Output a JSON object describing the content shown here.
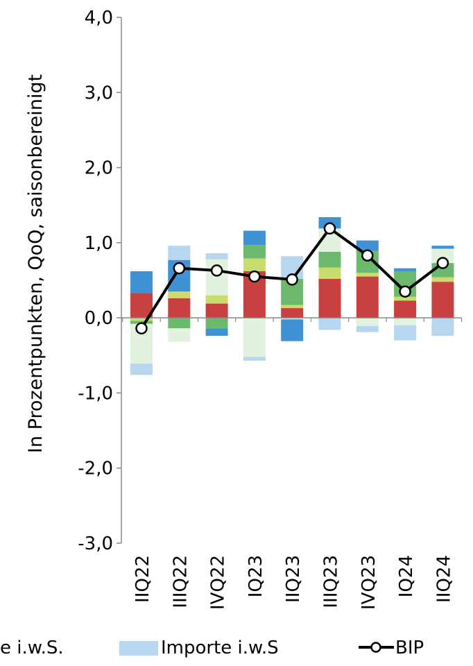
{
  "chart_data": {
    "type": "bar",
    "ylabel": "In Prozentpunkten, QoQ, saisonbereinigt",
    "ylim": [
      -3.0,
      4.0
    ],
    "yticks": [
      "4,0",
      "3,0",
      "2,0",
      "1,0",
      "0,0",
      "-1,0",
      "-2,0",
      "-3,0"
    ],
    "categories": [
      "IIQ22",
      "IIIQ22",
      "IVQ22",
      "IQ23",
      "IIQ23",
      "IIIQ23",
      "IVQ23",
      "IQ24",
      "IIQ24"
    ],
    "colors": {
      "red": "#c94040",
      "lime": "#c8dd6b",
      "green": "#6cb86c",
      "pale_green": "#e3f1df",
      "blue": "#3f92d6",
      "light_blue": "#b7d6ef",
      "bip_line": "#000000",
      "bip_marker_fill": "#ffffff"
    },
    "series": [
      {
        "key": "red",
        "values": [
          0.33,
          0.26,
          0.19,
          0.62,
          0.13,
          0.52,
          0.55,
          0.23,
          0.48
        ]
      },
      {
        "key": "lime",
        "values": [
          -0.04,
          0.09,
          0.11,
          0.17,
          0.04,
          0.15,
          0.05,
          0.05,
          0.06
        ]
      },
      {
        "key": "green",
        "values": [
          -0.04,
          -0.14,
          -0.14,
          0.18,
          0.35,
          0.21,
          0.29,
          0.34,
          0.19
        ]
      },
      {
        "key": "pale_green",
        "values": [
          -0.53,
          -0.18,
          0.48,
          -0.52,
          -0.02,
          0.31,
          -0.11,
          -0.1,
          0.19
        ]
      },
      {
        "key": "blue",
        "values": [
          0.29,
          0.42,
          -0.1,
          0.19,
          -0.29,
          0.15,
          0.14,
          0.04,
          0.04
        ]
      },
      {
        "name": "Importe i.w.S",
        "key": "light_blue",
        "values": [
          -0.15,
          0.19,
          0.08,
          -0.05,
          0.3,
          -0.16,
          -0.08,
          -0.2,
          -0.24
        ]
      }
    ],
    "line": {
      "name": "BIP",
      "values": [
        -0.14,
        0.66,
        0.63,
        0.55,
        0.51,
        1.19,
        0.83,
        0.35,
        0.73
      ]
    },
    "legend_items": [
      {
        "label": "e i.w.S.",
        "kind": "text"
      },
      {
        "label": "Importe i.w.S",
        "kind": "swatch",
        "key": "light_blue"
      },
      {
        "label": "BIP",
        "kind": "line"
      }
    ],
    "legend_position": "bottom",
    "grid": false
  }
}
